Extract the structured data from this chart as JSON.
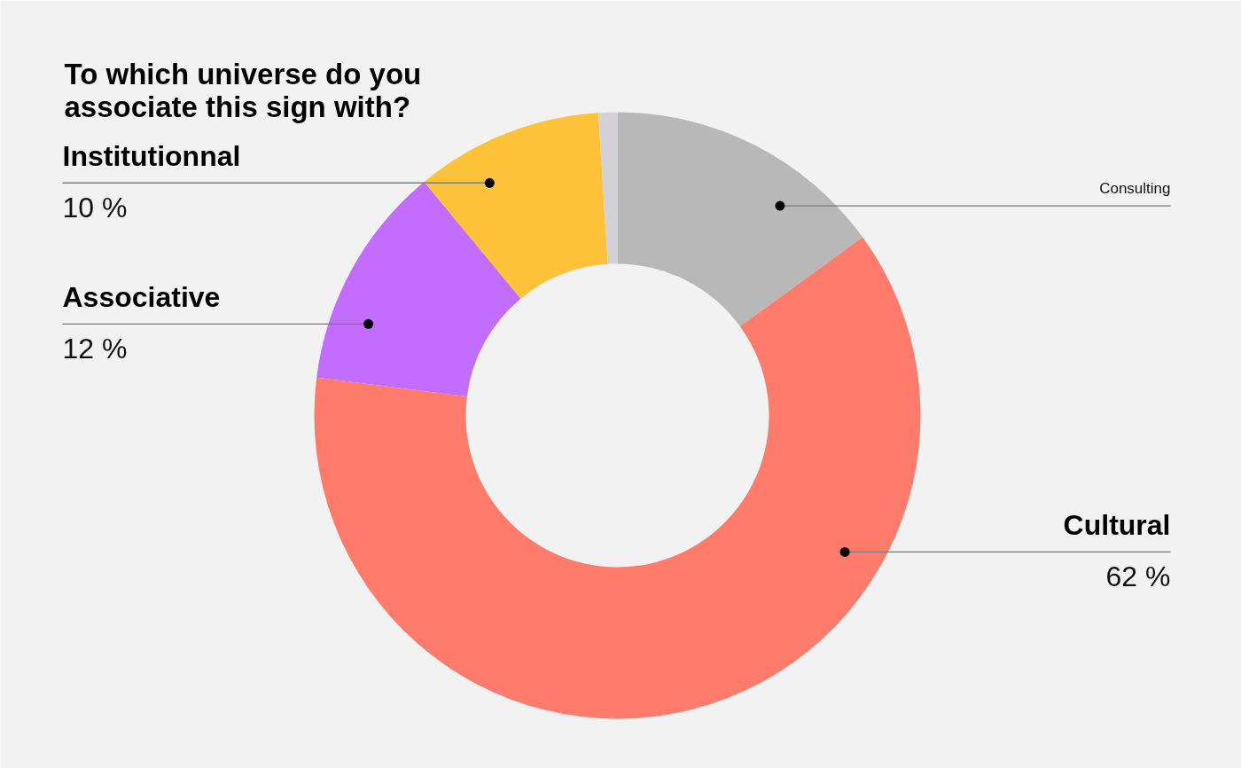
{
  "chart_data": {
    "type": "donut",
    "title": "To which universe do you associate this sign with?",
    "categories": [
      "Consulting",
      "Cultural",
      "Associative",
      "Institutionnal",
      null
    ],
    "values": [
      15,
      62,
      12,
      10,
      1
    ],
    "colors": [
      "#b8b8b8",
      "#ff7b6b",
      "#c36dff",
      "#ffc23b",
      "#d2d1d6"
    ],
    "value_labels": [
      null,
      "62 %",
      "12 %",
      "10 %",
      null
    ]
  }
}
